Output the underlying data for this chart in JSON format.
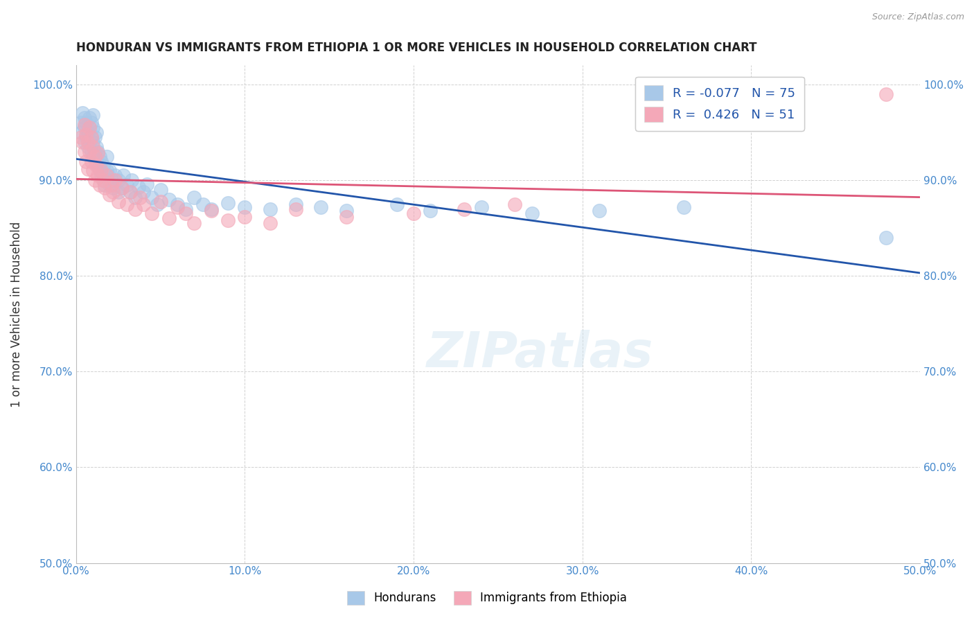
{
  "title": "HONDURAN VS IMMIGRANTS FROM ETHIOPIA 1 OR MORE VEHICLES IN HOUSEHOLD CORRELATION CHART",
  "source": "Source: ZipAtlas.com",
  "ylabel": "1 or more Vehicles in Household",
  "x_min": 0.0,
  "x_max": 0.5,
  "y_min": 0.5,
  "y_max": 1.02,
  "x_tick_labels": [
    "0.0%",
    "10.0%",
    "20.0%",
    "30.0%",
    "40.0%",
    "50.0%"
  ],
  "x_tick_vals": [
    0.0,
    0.1,
    0.2,
    0.3,
    0.4,
    0.5
  ],
  "y_tick_labels": [
    "100.0%",
    "90.0%",
    "80.0%",
    "70.0%",
    "60.0%",
    "50.0%"
  ],
  "y_tick_vals": [
    1.0,
    0.9,
    0.8,
    0.7,
    0.6,
    0.5
  ],
  "legend_labels_bottom": [
    "Hondurans",
    "Immigrants from Ethiopia"
  ],
  "blue_color": "#a8c8e8",
  "pink_color": "#f4a8b8",
  "blue_line_color": "#2255aa",
  "pink_line_color": "#dd5577",
  "watermark": "ZIPatlas",
  "blue_R": -0.077,
  "pink_R": 0.426,
  "blue_N": 75,
  "pink_N": 51,
  "honduran_x": [
    0.003,
    0.003,
    0.004,
    0.005,
    0.005,
    0.005,
    0.006,
    0.006,
    0.007,
    0.007,
    0.008,
    0.008,
    0.008,
    0.009,
    0.009,
    0.009,
    0.01,
    0.01,
    0.01,
    0.01,
    0.011,
    0.011,
    0.012,
    0.012,
    0.012,
    0.013,
    0.013,
    0.014,
    0.014,
    0.015,
    0.015,
    0.016,
    0.016,
    0.017,
    0.018,
    0.018,
    0.019,
    0.02,
    0.02,
    0.021,
    0.022,
    0.023,
    0.025,
    0.025,
    0.027,
    0.028,
    0.03,
    0.032,
    0.033,
    0.035,
    0.037,
    0.04,
    0.042,
    0.045,
    0.048,
    0.05,
    0.055,
    0.06,
    0.065,
    0.07,
    0.075,
    0.08,
    0.09,
    0.1,
    0.115,
    0.13,
    0.145,
    0.16,
    0.19,
    0.21,
    0.24,
    0.27,
    0.31,
    0.36,
    0.48
  ],
  "honduran_y": [
    0.96,
    0.95,
    0.97,
    0.955,
    0.94,
    0.965,
    0.945,
    0.96,
    0.935,
    0.95,
    0.94,
    0.955,
    0.965,
    0.93,
    0.945,
    0.96,
    0.925,
    0.94,
    0.955,
    0.968,
    0.93,
    0.945,
    0.92,
    0.935,
    0.95,
    0.915,
    0.93,
    0.91,
    0.925,
    0.905,
    0.92,
    0.9,
    0.915,
    0.895,
    0.91,
    0.925,
    0.905,
    0.895,
    0.91,
    0.9,
    0.892,
    0.905,
    0.888,
    0.9,
    0.892,
    0.905,
    0.895,
    0.888,
    0.9,
    0.882,
    0.893,
    0.888,
    0.896,
    0.882,
    0.875,
    0.89,
    0.88,
    0.875,
    0.87,
    0.882,
    0.875,
    0.87,
    0.876,
    0.872,
    0.87,
    0.875,
    0.872,
    0.868,
    0.875,
    0.868,
    0.872,
    0.865,
    0.868,
    0.872,
    0.84
  ],
  "ethiopia_x": [
    0.003,
    0.004,
    0.005,
    0.005,
    0.006,
    0.006,
    0.007,
    0.007,
    0.008,
    0.008,
    0.009,
    0.009,
    0.01,
    0.01,
    0.011,
    0.011,
    0.012,
    0.013,
    0.013,
    0.014,
    0.015,
    0.016,
    0.017,
    0.018,
    0.02,
    0.021,
    0.022,
    0.023,
    0.025,
    0.027,
    0.03,
    0.032,
    0.035,
    0.038,
    0.04,
    0.045,
    0.05,
    0.055,
    0.06,
    0.065,
    0.07,
    0.08,
    0.09,
    0.1,
    0.115,
    0.13,
    0.16,
    0.2,
    0.23,
    0.26,
    0.48
  ],
  "ethiopia_y": [
    0.945,
    0.94,
    0.958,
    0.93,
    0.948,
    0.92,
    0.94,
    0.912,
    0.93,
    0.955,
    0.92,
    0.945,
    0.91,
    0.935,
    0.9,
    0.925,
    0.915,
    0.905,
    0.928,
    0.895,
    0.91,
    0.9,
    0.892,
    0.905,
    0.885,
    0.895,
    0.888,
    0.9,
    0.878,
    0.892,
    0.875,
    0.888,
    0.87,
    0.882,
    0.875,
    0.865,
    0.878,
    0.86,
    0.872,
    0.865,
    0.855,
    0.868,
    0.858,
    0.862,
    0.855,
    0.87,
    0.862,
    0.865,
    0.87,
    0.875,
    0.99
  ]
}
